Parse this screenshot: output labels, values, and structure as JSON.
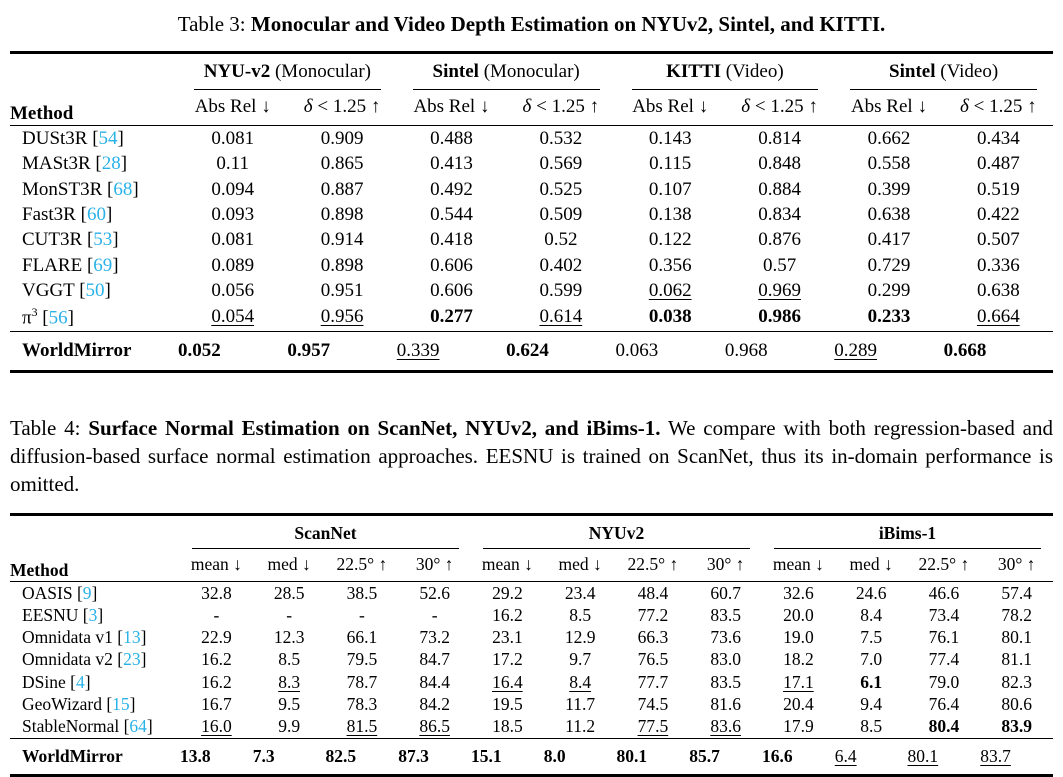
{
  "page": {
    "background": "#ffffff",
    "text_color": "#000000",
    "cite_color": "#29b2e8"
  },
  "table3": {
    "caption": {
      "prefix": "Table 3: ",
      "title": "Monocular and Video Depth Estimation on NYUv2, Sintel, and KITTI."
    },
    "method_header": "Method",
    "groups": [
      {
        "name": "NYU-v2",
        "mode": "(Monocular)"
      },
      {
        "name": "Sintel",
        "mode": "(Monocular)"
      },
      {
        "name": "KITTI",
        "mode": "(Video)"
      },
      {
        "name": "Sintel",
        "mode": "(Video)"
      }
    ],
    "metrics": [
      "Abs Rel ↓",
      "δ < 1.25 ↑"
    ],
    "rows": [
      {
        "method": "DUSt3R",
        "cite": "54",
        "cells": [
          "0.081",
          "0.909",
          "0.488",
          "0.532",
          "0.143",
          "0.814",
          "0.662",
          "0.434"
        ],
        "fmt": [
          "",
          "",
          "",
          "",
          "",
          "",
          "",
          ""
        ]
      },
      {
        "method": "MASt3R",
        "cite": "28",
        "cells": [
          "0.11",
          "0.865",
          "0.413",
          "0.569",
          "0.115",
          "0.848",
          "0.558",
          "0.487"
        ],
        "fmt": [
          "",
          "",
          "",
          "",
          "",
          "",
          "",
          ""
        ]
      },
      {
        "method": "MonST3R",
        "cite": "68",
        "cells": [
          "0.094",
          "0.887",
          "0.492",
          "0.525",
          "0.107",
          "0.884",
          "0.399",
          "0.519"
        ],
        "fmt": [
          "",
          "",
          "",
          "",
          "",
          "",
          "",
          ""
        ]
      },
      {
        "method": "Fast3R",
        "cite": "60",
        "cells": [
          "0.093",
          "0.898",
          "0.544",
          "0.509",
          "0.138",
          "0.834",
          "0.638",
          "0.422"
        ],
        "fmt": [
          "",
          "",
          "",
          "",
          "",
          "",
          "",
          ""
        ]
      },
      {
        "method": "CUT3R",
        "cite": "53",
        "cells": [
          "0.081",
          "0.914",
          "0.418",
          "0.52",
          "0.122",
          "0.876",
          "0.417",
          "0.507"
        ],
        "fmt": [
          "",
          "",
          "",
          "",
          "",
          "",
          "",
          ""
        ]
      },
      {
        "method": "FLARE",
        "cite": "69",
        "cells": [
          "0.089",
          "0.898",
          "0.606",
          "0.402",
          "0.356",
          "0.57",
          "0.729",
          "0.336"
        ],
        "fmt": [
          "",
          "",
          "",
          "",
          "",
          "",
          "",
          ""
        ]
      },
      {
        "method": "VGGT",
        "cite": "50",
        "cells": [
          "0.056",
          "0.951",
          "0.606",
          "0.599",
          "0.062",
          "0.969",
          "0.299",
          "0.638"
        ],
        "fmt": [
          "",
          "",
          "",
          "",
          "u",
          "u",
          "",
          ""
        ]
      },
      {
        "method": "π",
        "sup": "3",
        "cite": "56",
        "cells": [
          "0.054",
          "0.956",
          "0.277",
          "0.614",
          "0.038",
          "0.986",
          "0.233",
          "0.664"
        ],
        "fmt": [
          "u",
          "u",
          "b",
          "u",
          "b",
          "b",
          "b",
          "u"
        ]
      }
    ],
    "final_rows": [
      {
        "method": "WorldMirror",
        "bold_method": true,
        "cells": [
          "0.052",
          "0.957",
          "0.339",
          "0.624",
          "0.063",
          "0.968",
          "0.289",
          "0.668"
        ],
        "fmt": [
          "b",
          "b",
          "u",
          "b",
          "",
          "",
          "u",
          "b"
        ]
      }
    ]
  },
  "table4": {
    "caption": {
      "prefix": "Table 4: ",
      "title": "Surface Normal Estimation on ScanNet, NYUv2, and iBims-1.",
      "rest": " We compare with both regression-based and diffusion-based surface normal estimation approaches. EESNU is trained on ScanNet, thus its in-domain performance is omitted."
    },
    "method_header": "Method",
    "groups": [
      {
        "name": "ScanNet"
      },
      {
        "name": "NYUv2"
      },
      {
        "name": "iBims-1"
      }
    ],
    "metrics": [
      "mean ↓",
      "med ↓",
      "22.5° ↑",
      "30° ↑"
    ],
    "rows": [
      {
        "method": "OASIS",
        "cite": "9",
        "cells": [
          "32.8",
          "28.5",
          "38.5",
          "52.6",
          "29.2",
          "23.4",
          "48.4",
          "60.7",
          "32.6",
          "24.6",
          "46.6",
          "57.4"
        ],
        "fmt": [
          "",
          "",
          "",
          "",
          "",
          "",
          "",
          "",
          "",
          "",
          "",
          ""
        ]
      },
      {
        "method": "EESNU",
        "cite": "3",
        "cells": [
          "-",
          "-",
          "-",
          "-",
          "16.2",
          "8.5",
          "77.2",
          "83.5",
          "20.0",
          "8.4",
          "73.4",
          "78.2"
        ],
        "fmt": [
          "",
          "",
          "",
          "",
          "",
          "",
          "",
          "",
          "",
          "",
          "",
          ""
        ]
      },
      {
        "method": "Omnidata v1",
        "cite": "13",
        "cells": [
          "22.9",
          "12.3",
          "66.1",
          "73.2",
          "23.1",
          "12.9",
          "66.3",
          "73.6",
          "19.0",
          "7.5",
          "76.1",
          "80.1"
        ],
        "fmt": [
          "",
          "",
          "",
          "",
          "",
          "",
          "",
          "",
          "",
          "",
          "",
          ""
        ]
      },
      {
        "method": "Omnidata v2",
        "cite": "23",
        "cells": [
          "16.2",
          "8.5",
          "79.5",
          "84.7",
          "17.2",
          "9.7",
          "76.5",
          "83.0",
          "18.2",
          "7.0",
          "77.4",
          "81.1"
        ],
        "fmt": [
          "",
          "",
          "",
          "",
          "",
          "",
          "",
          "",
          "",
          "",
          "",
          ""
        ]
      },
      {
        "method": "DSine",
        "cite": "4",
        "cells": [
          "16.2",
          "8.3",
          "78.7",
          "84.4",
          "16.4",
          "8.4",
          "77.7",
          "83.5",
          "17.1",
          "6.1",
          "79.0",
          "82.3"
        ],
        "fmt": [
          "",
          "u",
          "",
          "",
          "u",
          "u",
          "",
          "",
          "u",
          "b",
          "",
          ""
        ]
      },
      {
        "method": "GeoWizard",
        "cite": "15",
        "cells": [
          "16.7",
          "9.5",
          "78.3",
          "84.2",
          "19.5",
          "11.7",
          "74.5",
          "81.6",
          "20.4",
          "9.4",
          "76.4",
          "80.6"
        ],
        "fmt": [
          "",
          "",
          "",
          "",
          "",
          "",
          "",
          "",
          "",
          "",
          "",
          ""
        ]
      },
      {
        "method": "StableNormal",
        "cite": "64",
        "cells": [
          "16.0",
          "9.9",
          "81.5",
          "86.5",
          "18.5",
          "11.2",
          "77.5",
          "83.6",
          "17.9",
          "8.5",
          "80.4",
          "83.9"
        ],
        "fmt": [
          "u",
          "",
          "u",
          "u",
          "",
          "",
          "u",
          "u",
          "",
          "",
          "b",
          "b"
        ]
      }
    ],
    "final_rows": [
      {
        "method": "WorldMirror",
        "bold_method": true,
        "cells": [
          "13.8",
          "7.3",
          "82.5",
          "87.3",
          "15.1",
          "8.0",
          "80.1",
          "85.7",
          "16.6",
          "6.4",
          "80.1",
          "83.7"
        ],
        "fmt": [
          "b",
          "b",
          "b",
          "b",
          "b",
          "b",
          "b",
          "b",
          "b",
          "u",
          "u",
          "u"
        ]
      }
    ]
  }
}
